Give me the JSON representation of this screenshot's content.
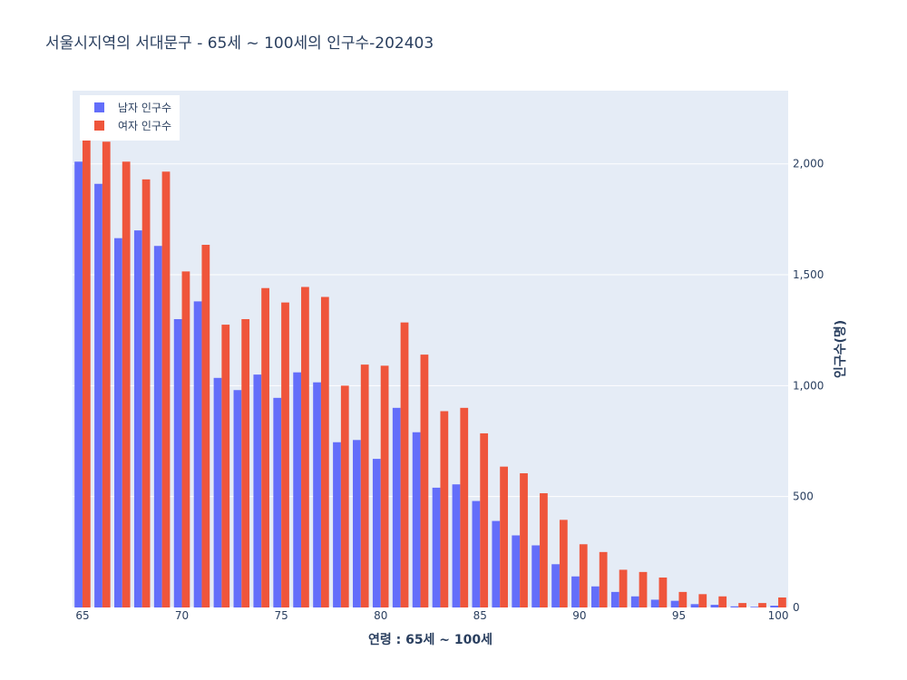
{
  "chart_data": {
    "type": "bar",
    "title": "서울시지역의 서대문구 - 65세 ~ 100세의 인구수-202403",
    "xlabel": "연령 : 65세 ~ 100세",
    "ylabel": "인구수(명)",
    "x": [
      65,
      66,
      67,
      68,
      69,
      70,
      71,
      72,
      73,
      74,
      75,
      76,
      77,
      78,
      79,
      80,
      81,
      82,
      83,
      84,
      85,
      86,
      87,
      88,
      89,
      90,
      91,
      92,
      93,
      94,
      95,
      96,
      97,
      98,
      99,
      100
    ],
    "x_ticks": [
      65,
      70,
      75,
      80,
      85,
      90,
      95,
      100
    ],
    "x_tick_labels": [
      "65",
      "70",
      "75",
      "80",
      "85",
      "90",
      "95",
      "100"
    ],
    "ylim": [
      0,
      2330
    ],
    "y_ticks": [
      0,
      500,
      1000,
      1500,
      2000
    ],
    "y_tick_labels": [
      "0",
      "500",
      "1,000",
      "1,500",
      "2,000"
    ],
    "y_axis_side": "right",
    "grid": true,
    "legend_position": "top-left",
    "series": [
      {
        "name": "남자 인구수",
        "color": "#636efa",
        "values": [
          2010,
          1910,
          1665,
          1700,
          1630,
          1300,
          1380,
          1035,
          980,
          1050,
          945,
          1060,
          1015,
          745,
          755,
          670,
          900,
          790,
          540,
          555,
          480,
          390,
          325,
          280,
          195,
          140,
          95,
          70,
          50,
          35,
          30,
          15,
          12,
          5,
          3,
          8
        ]
      },
      {
        "name": "여자 인구수",
        "color": "#ef553b",
        "values": [
          2115,
          2100,
          2010,
          1930,
          1965,
          1515,
          1635,
          1275,
          1300,
          1440,
          1375,
          1445,
          1400,
          1000,
          1095,
          1090,
          1285,
          1140,
          885,
          900,
          785,
          635,
          605,
          515,
          395,
          285,
          250,
          170,
          160,
          135,
          70,
          60,
          50,
          20,
          20,
          45
        ]
      }
    ]
  }
}
